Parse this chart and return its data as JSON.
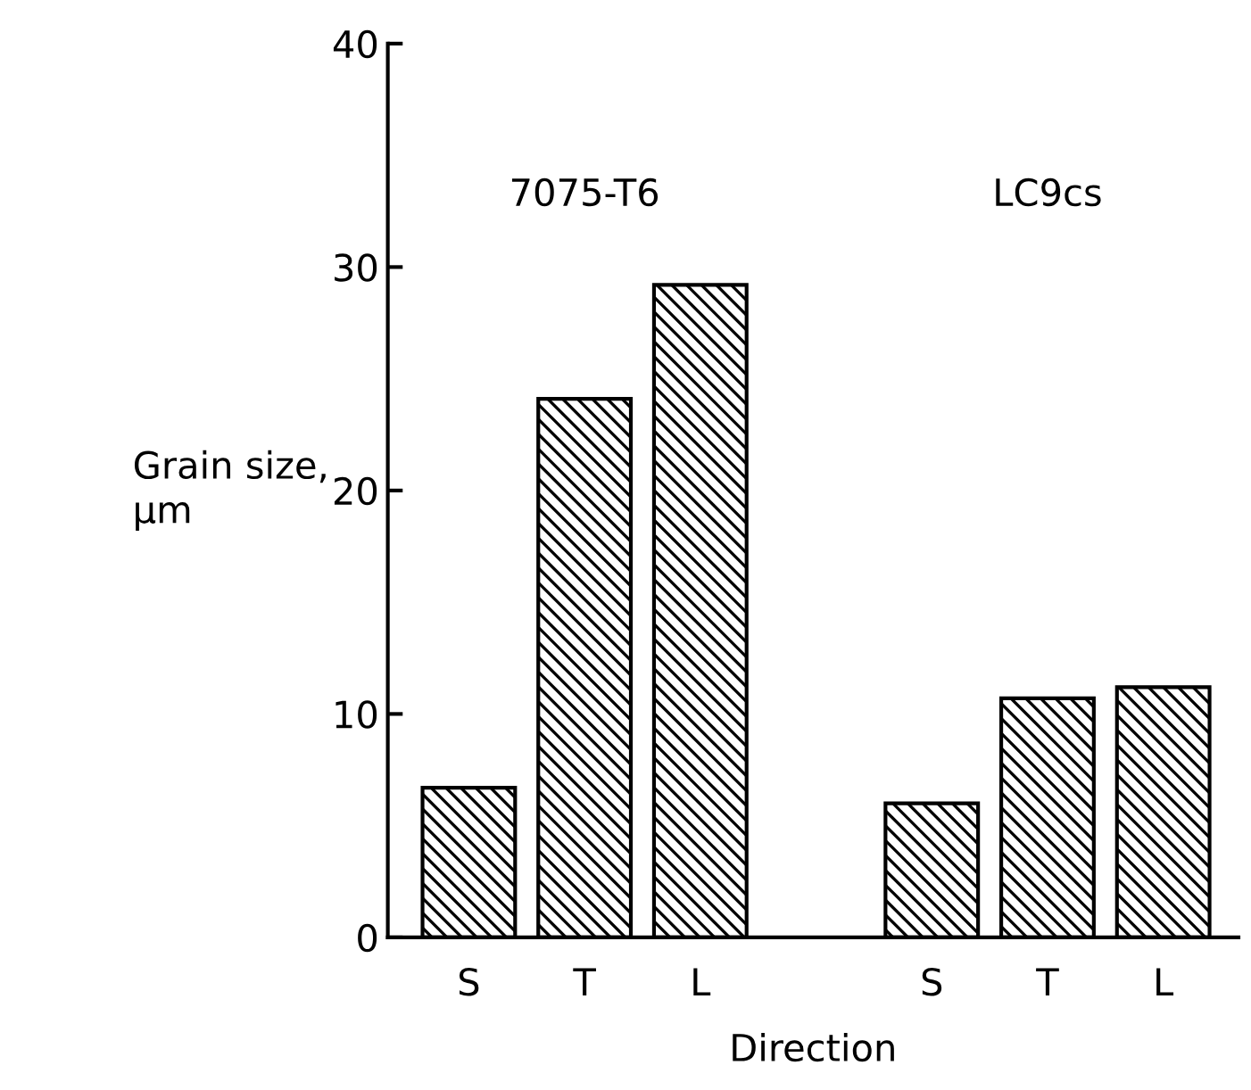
{
  "chart_data": {
    "type": "bar",
    "xlabel": "Direction",
    "ylabel": "Grain size,\nμm",
    "categories": [
      "S",
      "T",
      "L",
      null,
      "S",
      "T",
      "L"
    ],
    "values": [
      6.7,
      24.1,
      29.2,
      null,
      6.0,
      10.7,
      11.2
    ],
    "color": "#000000",
    "annotations": [
      "7075-T6",
      "LC9cs"
    ],
    "ylim": [
      0,
      40
    ],
    "yticks": [
      0,
      10,
      20,
      30,
      40
    ],
    "grid": false
  }
}
